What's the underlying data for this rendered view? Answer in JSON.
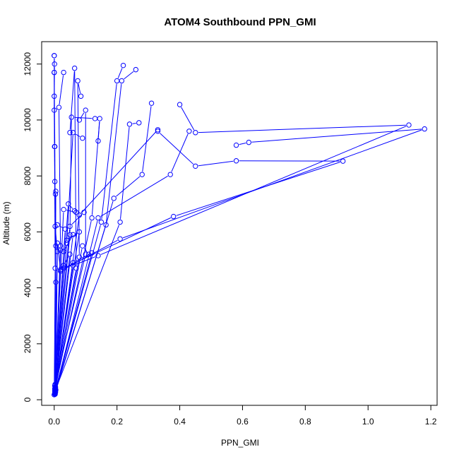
{
  "chart_data": {
    "type": "line",
    "title": "ATOM4 Southbound PPN_GMI",
    "xlabel": "PPN_GMI",
    "ylabel": "Altitude (m)",
    "xlim": [
      -0.04,
      1.22
    ],
    "ylim": [
      -200,
      12800
    ],
    "xticks": [
      0.0,
      0.2,
      0.4,
      0.6,
      0.8,
      1.0,
      1.2
    ],
    "xtick_labels": [
      "0.0",
      "0.2",
      "0.4",
      "0.6",
      "0.8",
      "1.0",
      "1.2"
    ],
    "yticks": [
      0,
      2000,
      4000,
      6000,
      8000,
      10000,
      12000
    ],
    "ytick_labels": [
      "0",
      "2000",
      "4000",
      "6000",
      "8000",
      "10000",
      "12000"
    ],
    "grid": false,
    "color": "#0000ff",
    "marker": "open-circle",
    "series": [
      {
        "x": [
          0.003,
          0.03,
          0.38,
          0.92,
          0.58,
          0.45,
          0.33
        ],
        "y": [
          200,
          4700,
          6550,
          8530,
          8540,
          8350,
          9600
        ]
      },
      {
        "x": [
          0.002,
          0.06,
          0.14,
          1.13,
          0.45,
          0.4
        ],
        "y": [
          250,
          4800,
          5150,
          9820,
          9550,
          10550
        ]
      },
      {
        "x": [
          0.003,
          0.02,
          0.21,
          1.18,
          0.62,
          0.58
        ],
        "y": [
          300,
          4600,
          5750,
          9680,
          9200,
          9100
        ]
      },
      {
        "x": [
          0.0,
          0.003,
          0.001,
          0.0,
          0.0,
          0.0
        ],
        "y": [
          180,
          4700,
          9050,
          10850,
          11700,
          12300
        ]
      },
      {
        "x": [
          0.002,
          0.005,
          0.002,
          0.0,
          0.001,
          0.0
        ],
        "y": [
          220,
          4200,
          7800,
          10350,
          12000,
          12300
        ]
      },
      {
        "x": [
          0.005,
          0.01,
          0.003,
          0.002,
          0.0
        ],
        "y": [
          350,
          5300,
          6200,
          9050,
          11700
        ]
      },
      {
        "x": [
          0.004,
          0.02,
          0.015,
          0.03
        ],
        "y": [
          400,
          5350,
          10450,
          11700
        ]
      },
      {
        "x": [
          0.003,
          0.07,
          0.065,
          0.05
        ],
        "y": [
          450,
          4700,
          11850,
          9550
        ]
      },
      {
        "x": [
          0.002,
          0.08,
          0.075,
          0.085
        ],
        "y": [
          500,
          5100,
          11400,
          10850
        ]
      },
      {
        "x": [
          0.003,
          0.1,
          0.1,
          0.08
        ],
        "y": [
          550,
          5200,
          10350,
          10000
        ]
      },
      {
        "x": [
          0.004,
          0.04,
          0.06,
          0.09
        ],
        "y": [
          300,
          5600,
          9550,
          9350
        ]
      },
      {
        "x": [
          0.002,
          0.05,
          0.055,
          0.13
        ],
        "y": [
          350,
          5900,
          10100,
          10050
        ]
      },
      {
        "x": [
          0.003,
          0.12,
          0.145,
          0.14
        ],
        "y": [
          400,
          6500,
          10050,
          9250
        ]
      },
      {
        "x": [
          0.002,
          0.15,
          0.2,
          0.22
        ],
        "y": [
          250,
          6350,
          11400,
          11950
        ]
      },
      {
        "x": [
          0.003,
          0.165,
          0.215,
          0.26
        ],
        "y": [
          300,
          6250,
          11400,
          11800
        ]
      },
      {
        "x": [
          0.004,
          0.21,
          0.24,
          0.27
        ],
        "y": [
          350,
          6350,
          9850,
          9900
        ]
      },
      {
        "x": [
          0.002,
          0.19,
          0.28,
          0.31
        ],
        "y": [
          200,
          7200,
          8050,
          10600
        ]
      },
      {
        "x": [
          0.003,
          0.14,
          0.37,
          0.43
        ],
        "y": [
          250,
          6500,
          8050,
          9600
        ]
      },
      {
        "x": [
          0.002,
          0.08,
          0.33
        ],
        "y": [
          300,
          6600,
          9650
        ]
      },
      {
        "x": [
          0.003,
          0.05,
          0.095
        ],
        "y": [
          350,
          6200,
          6700
        ]
      },
      {
        "x": [
          0.002,
          0.035,
          0.01
        ],
        "y": [
          400,
          6100,
          6250
        ]
      },
      {
        "x": [
          0.004,
          0.02,
          0.005
        ],
        "y": [
          450,
          5500,
          5500
        ]
      },
      {
        "x": [
          0.002,
          0.045,
          0.065
        ],
        "y": [
          500,
          7000,
          6750
        ]
      },
      {
        "x": [
          0.003,
          0.09,
          0.11
        ],
        "y": [
          350,
          5500,
          5200
        ]
      },
      {
        "x": [
          0.002,
          0.03,
          0.07
        ],
        "y": [
          300,
          6800,
          6700
        ]
      },
      {
        "x": [
          0.003,
          0.06,
          0.03
        ],
        "y": [
          400,
          5900,
          5300
        ]
      },
      {
        "x": [
          0.004,
          0.005,
          0.004
        ],
        "y": [
          260,
          7450,
          7350
        ]
      },
      {
        "x": [
          0.003,
          0.12,
          0.06
        ],
        "y": [
          330,
          5250,
          4900
        ]
      },
      {
        "x": [
          0.002,
          0.08,
          0.04
        ],
        "y": [
          380,
          6000,
          5700
        ]
      },
      {
        "x": [
          0.003,
          0.05,
          0.03
        ],
        "y": [
          420,
          5200,
          4800
        ]
      },
      {
        "x": [
          0.002,
          0.01,
          0.02
        ],
        "y": [
          280,
          5600,
          4650
        ]
      }
    ]
  }
}
